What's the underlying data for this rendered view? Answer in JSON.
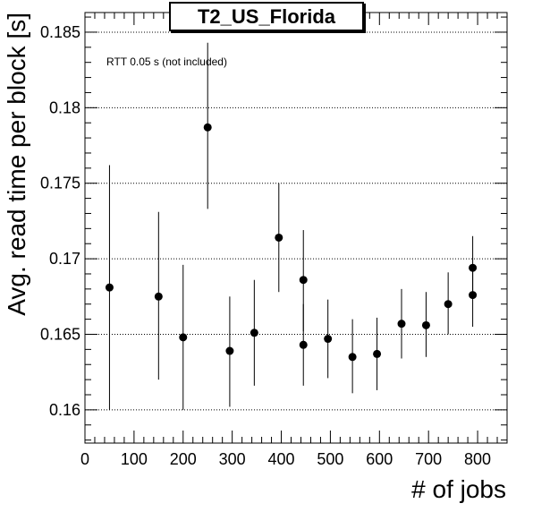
{
  "chart_data": {
    "type": "scatter",
    "title": "T2_US_Florida",
    "xlabel": "# of jobs",
    "ylabel": "Avg. read time per block [s]",
    "annotation": "RTT 0.05 s (not included)",
    "xlim": [
      0,
      860
    ],
    "ylim": [
      0.1578,
      0.1863
    ],
    "x_ticks": [
      0,
      100,
      200,
      300,
      400,
      500,
      600,
      700,
      800
    ],
    "x_tick_labels": [
      "0",
      "100",
      "200",
      "300",
      "400",
      "500",
      "600",
      "700",
      "800"
    ],
    "y_ticks": [
      0.16,
      0.165,
      0.17,
      0.175,
      0.18,
      0.185
    ],
    "y_tick_labels": [
      "0.16",
      "0.165",
      "0.17",
      "0.175",
      "0.18",
      "0.185"
    ],
    "grid": "horizontal dotted",
    "points": [
      {
        "x": 50,
        "y": 0.1681,
        "err_low": 0.16,
        "err_high": 0.1762
      },
      {
        "x": 150,
        "y": 0.1675,
        "err_low": 0.162,
        "err_high": 0.1731
      },
      {
        "x": 200,
        "y": 0.1648,
        "err_low": 0.16,
        "err_high": 0.1696
      },
      {
        "x": 250,
        "y": 0.1787,
        "err_low": 0.1733,
        "err_high": 0.1843
      },
      {
        "x": 295,
        "y": 0.1639,
        "err_low": 0.1602,
        "err_high": 0.1675
      },
      {
        "x": 345,
        "y": 0.1651,
        "err_low": 0.1616,
        "err_high": 0.1686
      },
      {
        "x": 395,
        "y": 0.1714,
        "err_low": 0.1678,
        "err_high": 0.175
      },
      {
        "x": 445,
        "y": 0.1686,
        "err_low": 0.1652,
        "err_high": 0.1719
      },
      {
        "x": 445,
        "y": 0.1643,
        "err_low": 0.1616,
        "err_high": 0.167
      },
      {
        "x": 495,
        "y": 0.1647,
        "err_low": 0.1621,
        "err_high": 0.1673
      },
      {
        "x": 545,
        "y": 0.1635,
        "err_low": 0.1611,
        "err_high": 0.166
      },
      {
        "x": 595,
        "y": 0.1637,
        "err_low": 0.1613,
        "err_high": 0.1661
      },
      {
        "x": 645,
        "y": 0.1657,
        "err_low": 0.1634,
        "err_high": 0.168
      },
      {
        "x": 695,
        "y": 0.1656,
        "err_low": 0.1635,
        "err_high": 0.1678
      },
      {
        "x": 740,
        "y": 0.167,
        "err_low": 0.165,
        "err_high": 0.1691
      },
      {
        "x": 790,
        "y": 0.1694,
        "err_low": 0.1675,
        "err_high": 0.1715
      },
      {
        "x": 790,
        "y": 0.1676,
        "err_low": 0.1655,
        "err_high": 0.1696
      }
    ]
  }
}
